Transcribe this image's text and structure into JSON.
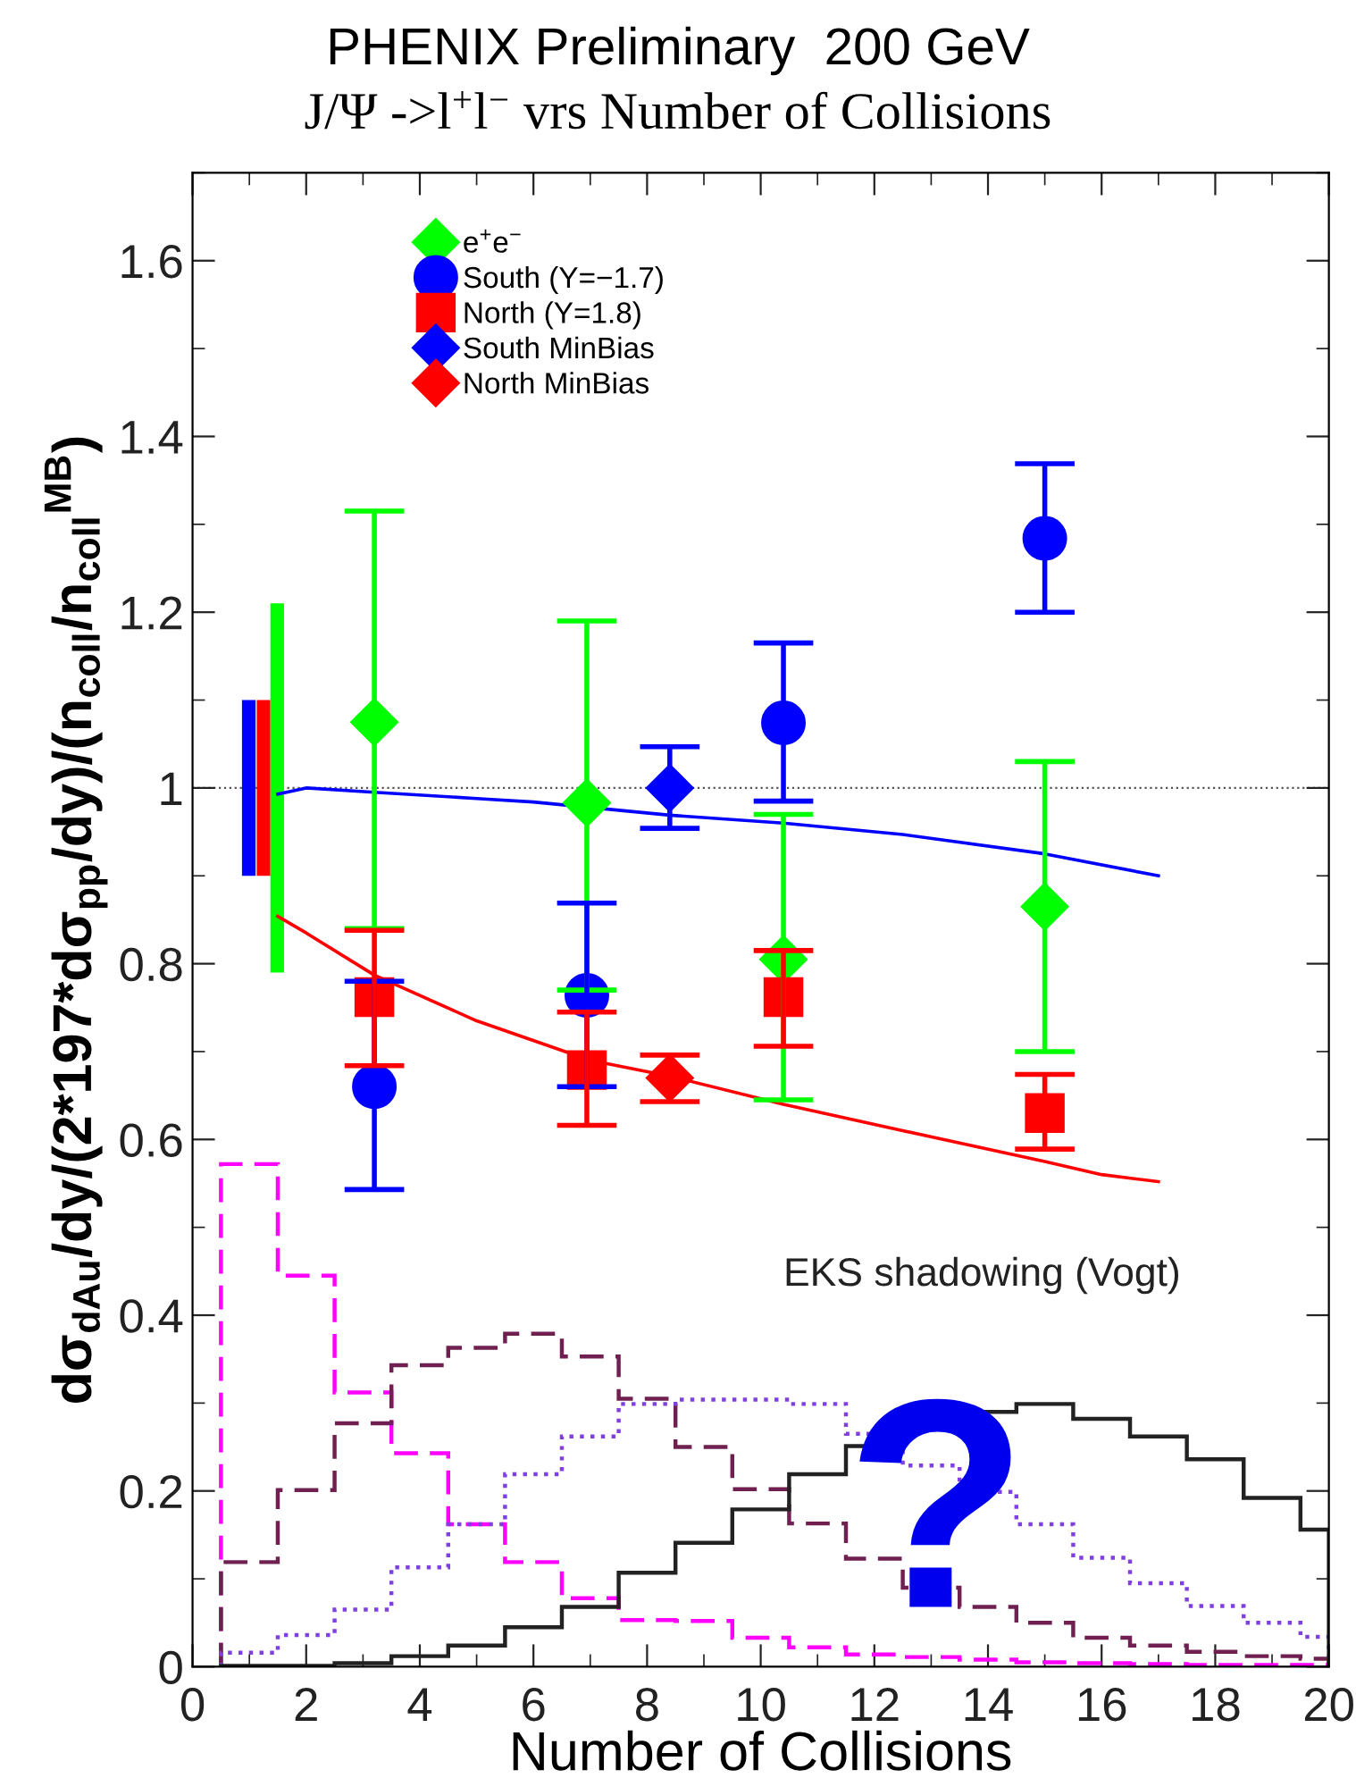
{
  "chart_data": {
    "type": "scatter",
    "title": "PHENIX Preliminary  200 GeV",
    "subtitle": "J/Ψ ->l$^{+}$l$^{−}$ vrs Number of Collisions",
    "xlabel": "Number of Collisions",
    "ylabel": "dσ$_{dAu}$/dy/(2*197*dσ$_{pp}$/dy)/(n$_{coll}$/n$_{coll}$$^{MB}$)",
    "xlim": [
      0,
      20
    ],
    "ylim": [
      0,
      1.7
    ],
    "xticks": [
      0,
      2,
      4,
      6,
      8,
      10,
      12,
      14,
      16,
      18,
      20
    ],
    "yticks": [
      0,
      0.2,
      0.4,
      0.6,
      0.8,
      1,
      1.2,
      1.4,
      1.6
    ],
    "grid": false,
    "legend": "top left",
    "ref_lines": [
      {
        "axis": "y",
        "value": 1,
        "color": "#555555",
        "line_style": "dotted"
      }
    ],
    "annotations": [
      "EKS shadowing (Vogt)",
      "?"
    ],
    "series": [
      {
        "type": "bar",
        "x": [
          0.99
        ],
        "base": [
          0.9
        ],
        "values": [
          0.2
        ],
        "color": "#0000ff"
      },
      {
        "type": "bar",
        "x": [
          1.25
        ],
        "base": [
          0.9
        ],
        "values": [
          0.2
        ],
        "color": "#ff0000"
      },
      {
        "type": "bar",
        "x": [
          1.49
        ],
        "base": [
          0.79
        ],
        "values": [
          0.42
        ],
        "color": "#00ff00"
      },
      {
        "type": "line",
        "color": "#0000ff",
        "x": [
          1.5,
          2.0,
          3.2,
          5.0,
          6.0,
          8.4,
          10.4,
          12.5,
          15.0,
          17.0
        ],
        "values": [
          0.993,
          1.0,
          0.995,
          0.988,
          0.984,
          0.969,
          0.96,
          0.947,
          0.925,
          0.9
        ]
      },
      {
        "type": "line",
        "color": "#ff0000",
        "x": [
          1.5,
          2.0,
          3.2,
          5.0,
          7.0,
          8.4,
          10.4,
          12.5,
          15.0,
          16.0,
          17.0
        ],
        "values": [
          0.854,
          0.835,
          0.787,
          0.735,
          0.69,
          0.672,
          0.64,
          0.61,
          0.575,
          0.56,
          0.552
        ]
      },
      {
        "type": "histogram",
        "color": "#ff00ff",
        "line_style": "dashed",
        "bins": [
          0.5,
          1.5,
          2.5,
          3.5,
          4.5,
          5.5,
          6.5,
          7.5,
          8.5,
          9.5,
          10.5,
          11.5,
          12.5,
          13.5,
          14.5,
          15.5,
          16.5,
          17.5,
          18.5,
          19.5,
          20
        ],
        "values": [
          0.572,
          0.445,
          0.312,
          0.243,
          0.162,
          0.119,
          0.078,
          0.053,
          0.052,
          0.033,
          0.022,
          0.014,
          0.011,
          0.008,
          0.005,
          0.004,
          0.003,
          0.002,
          0.002,
          0.002
        ]
      },
      {
        "type": "histogram",
        "color": "#702050",
        "line_style": "dashed",
        "bins": [
          0.5,
          1.5,
          2.5,
          3.5,
          4.5,
          5.5,
          6.5,
          7.5,
          8.5,
          9.5,
          10.5,
          11.5,
          12.5,
          13.5,
          14.5,
          15.5,
          16.5,
          17.5,
          18.5,
          19.5,
          20
        ],
        "values": [
          0.119,
          0.201,
          0.277,
          0.343,
          0.363,
          0.379,
          0.353,
          0.305,
          0.25,
          0.202,
          0.163,
          0.123,
          0.09,
          0.068,
          0.05,
          0.033,
          0.024,
          0.017,
          0.012,
          0.009
        ]
      },
      {
        "type": "histogram",
        "color": "#8040e0",
        "line_style": "dotted",
        "bins": [
          0.5,
          1.5,
          2.5,
          3.5,
          4.5,
          5.5,
          6.5,
          7.5,
          8.5,
          9.5,
          10.5,
          11.5,
          12.5,
          13.5,
          14.5,
          15.5,
          16.5,
          17.5,
          18.5,
          19.5,
          20
        ],
        "values": [
          0.016,
          0.036,
          0.065,
          0.113,
          0.162,
          0.219,
          0.262,
          0.299,
          0.304,
          0.304,
          0.299,
          0.265,
          0.229,
          0.199,
          0.162,
          0.124,
          0.095,
          0.069,
          0.05,
          0.034
        ]
      },
      {
        "type": "histogram",
        "color": "#222222",
        "line_style": "solid",
        "bins": [
          0.5,
          1.5,
          2.5,
          3.5,
          4.5,
          5.5,
          6.5,
          7.5,
          8.5,
          9.5,
          10.5,
          11.5,
          12.5,
          13.5,
          14.5,
          15.5,
          16.5,
          17.5,
          18.5,
          19.5,
          20
        ],
        "values": [
          0.001,
          0.001,
          0.004,
          0.012,
          0.024,
          0.045,
          0.068,
          0.107,
          0.141,
          0.179,
          0.219,
          0.251,
          0.274,
          0.29,
          0.299,
          0.282,
          0.262,
          0.236,
          0.192,
          0.156
        ]
      },
      {
        "name": "e$^{+}$e$^{−}$",
        "color": "#00ff00",
        "marker": "diamond",
        "x": [
          3.2,
          6.94,
          10.4,
          15.0
        ],
        "values": [
          1.075,
          0.983,
          0.805,
          0.865
        ],
        "errors": [
          [
            0.84,
            1.315
          ],
          [
            0.77,
            1.19
          ],
          [
            0.645,
            0.97
          ],
          [
            0.7,
            1.03
          ]
        ]
      },
      {
        "name": "South (Y=−1.7)",
        "color": "#0000ff",
        "marker": "circle",
        "x": [
          3.2,
          6.94,
          10.4,
          15.0
        ],
        "values": [
          0.66,
          0.764,
          1.074,
          1.284
        ],
        "errors": [
          [
            0.543,
            0.78
          ],
          [
            0.66,
            0.869
          ],
          [
            0.985,
            1.165
          ],
          [
            1.2,
            1.369
          ]
        ]
      },
      {
        "name": "North (Y=1.8)",
        "color": "#ff0000",
        "marker": "square",
        "x": [
          3.2,
          6.94,
          10.4,
          15.0
        ],
        "values": [
          0.762,
          0.679,
          0.762,
          0.63
        ],
        "errors": [
          [
            0.684,
            0.838
          ],
          [
            0.616,
            0.745
          ],
          [
            0.706,
            0.815
          ],
          [
            0.589,
            0.674
          ]
        ]
      },
      {
        "name": "South MinBias",
        "color": "#0000ff",
        "marker": "diamond",
        "x": [
          8.4
        ],
        "values": [
          1.0
        ],
        "errors": [
          [
            0.954,
            1.047
          ]
        ]
      },
      {
        "name": "North MinBias",
        "color": "#ff0000",
        "marker": "diamond",
        "x": [
          8.4
        ],
        "values": [
          0.67
        ],
        "errors": [
          [
            0.643,
            0.696
          ]
        ]
      }
    ]
  }
}
